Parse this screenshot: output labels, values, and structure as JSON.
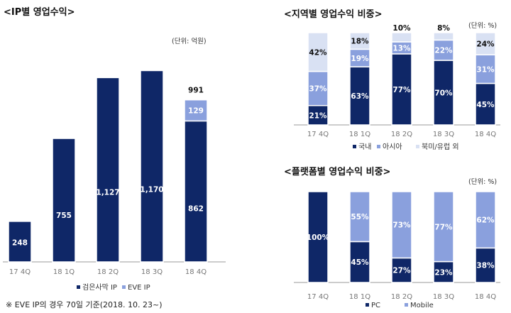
{
  "colors": {
    "dark": "#0f2767",
    "medium": "#8aa0dd",
    "light": "#d9e1f3",
    "axis": "#999999"
  },
  "charts": {
    "ip": {
      "title": "<IP별 영업수익>",
      "unit": "(단위: 억원)",
      "footnote": "※ EVE IP의 경우 70일 기준(2018. 10. 23~)"
    },
    "region": {
      "title": "<지역별 영업수익 비중>",
      "unit": "(단위: %)"
    },
    "platform": {
      "title": "<플랫폼별 영업수익 비중>",
      "unit": "(단위: %)"
    }
  },
  "chart_data": [
    {
      "id": "ip",
      "type": "bar",
      "stacked": true,
      "title": "<IP별 영업수익>",
      "unit": "억원",
      "categories": [
        "17 4Q",
        "18 1Q",
        "18 2Q",
        "18 3Q",
        "18 4Q"
      ],
      "series": [
        {
          "name": "검은사막 IP",
          "color": "dark",
          "values": [
            248,
            755,
            1127,
            1170,
            862
          ],
          "labels": [
            "248",
            "755",
            "1,127",
            "1,170",
            "862"
          ]
        },
        {
          "name": "EVE IP",
          "color": "medium",
          "values": [
            0,
            0,
            0,
            0,
            129
          ],
          "labels": [
            "",
            "",
            "",
            "",
            "129"
          ]
        }
      ],
      "totals": [
        "",
        "",
        "",
        "",
        "991"
      ],
      "ylim": [
        0,
        1250
      ]
    },
    {
      "id": "region",
      "type": "bar",
      "stacked": true,
      "percent": true,
      "title": "<지역별 영업수익 비중>",
      "unit": "%",
      "categories": [
        "17 4Q",
        "18 1Q",
        "18 2Q",
        "18 3Q",
        "18 4Q"
      ],
      "series": [
        {
          "name": "국내",
          "color": "dark",
          "values": [
            21,
            63,
            77,
            70,
            45
          ]
        },
        {
          "name": "아시아",
          "color": "medium",
          "values": [
            37,
            19,
            13,
            22,
            31
          ]
        },
        {
          "name": "북미/유럽 외",
          "color": "light",
          "values": [
            42,
            18,
            10,
            8,
            24
          ]
        }
      ],
      "ylim": [
        0,
        100
      ]
    },
    {
      "id": "platform",
      "type": "bar",
      "stacked": true,
      "percent": true,
      "title": "<플랫폼별 영업수익 비중>",
      "unit": "%",
      "categories": [
        "17 4Q",
        "18 1Q",
        "18 2Q",
        "18 3Q",
        "18 4Q"
      ],
      "series": [
        {
          "name": "PC",
          "color": "dark",
          "values": [
            100,
            45,
            27,
            23,
            38
          ]
        },
        {
          "name": "Mobile",
          "color": "medium",
          "values": [
            0,
            55,
            73,
            77,
            62
          ]
        }
      ],
      "ylim": [
        0,
        100
      ]
    }
  ]
}
